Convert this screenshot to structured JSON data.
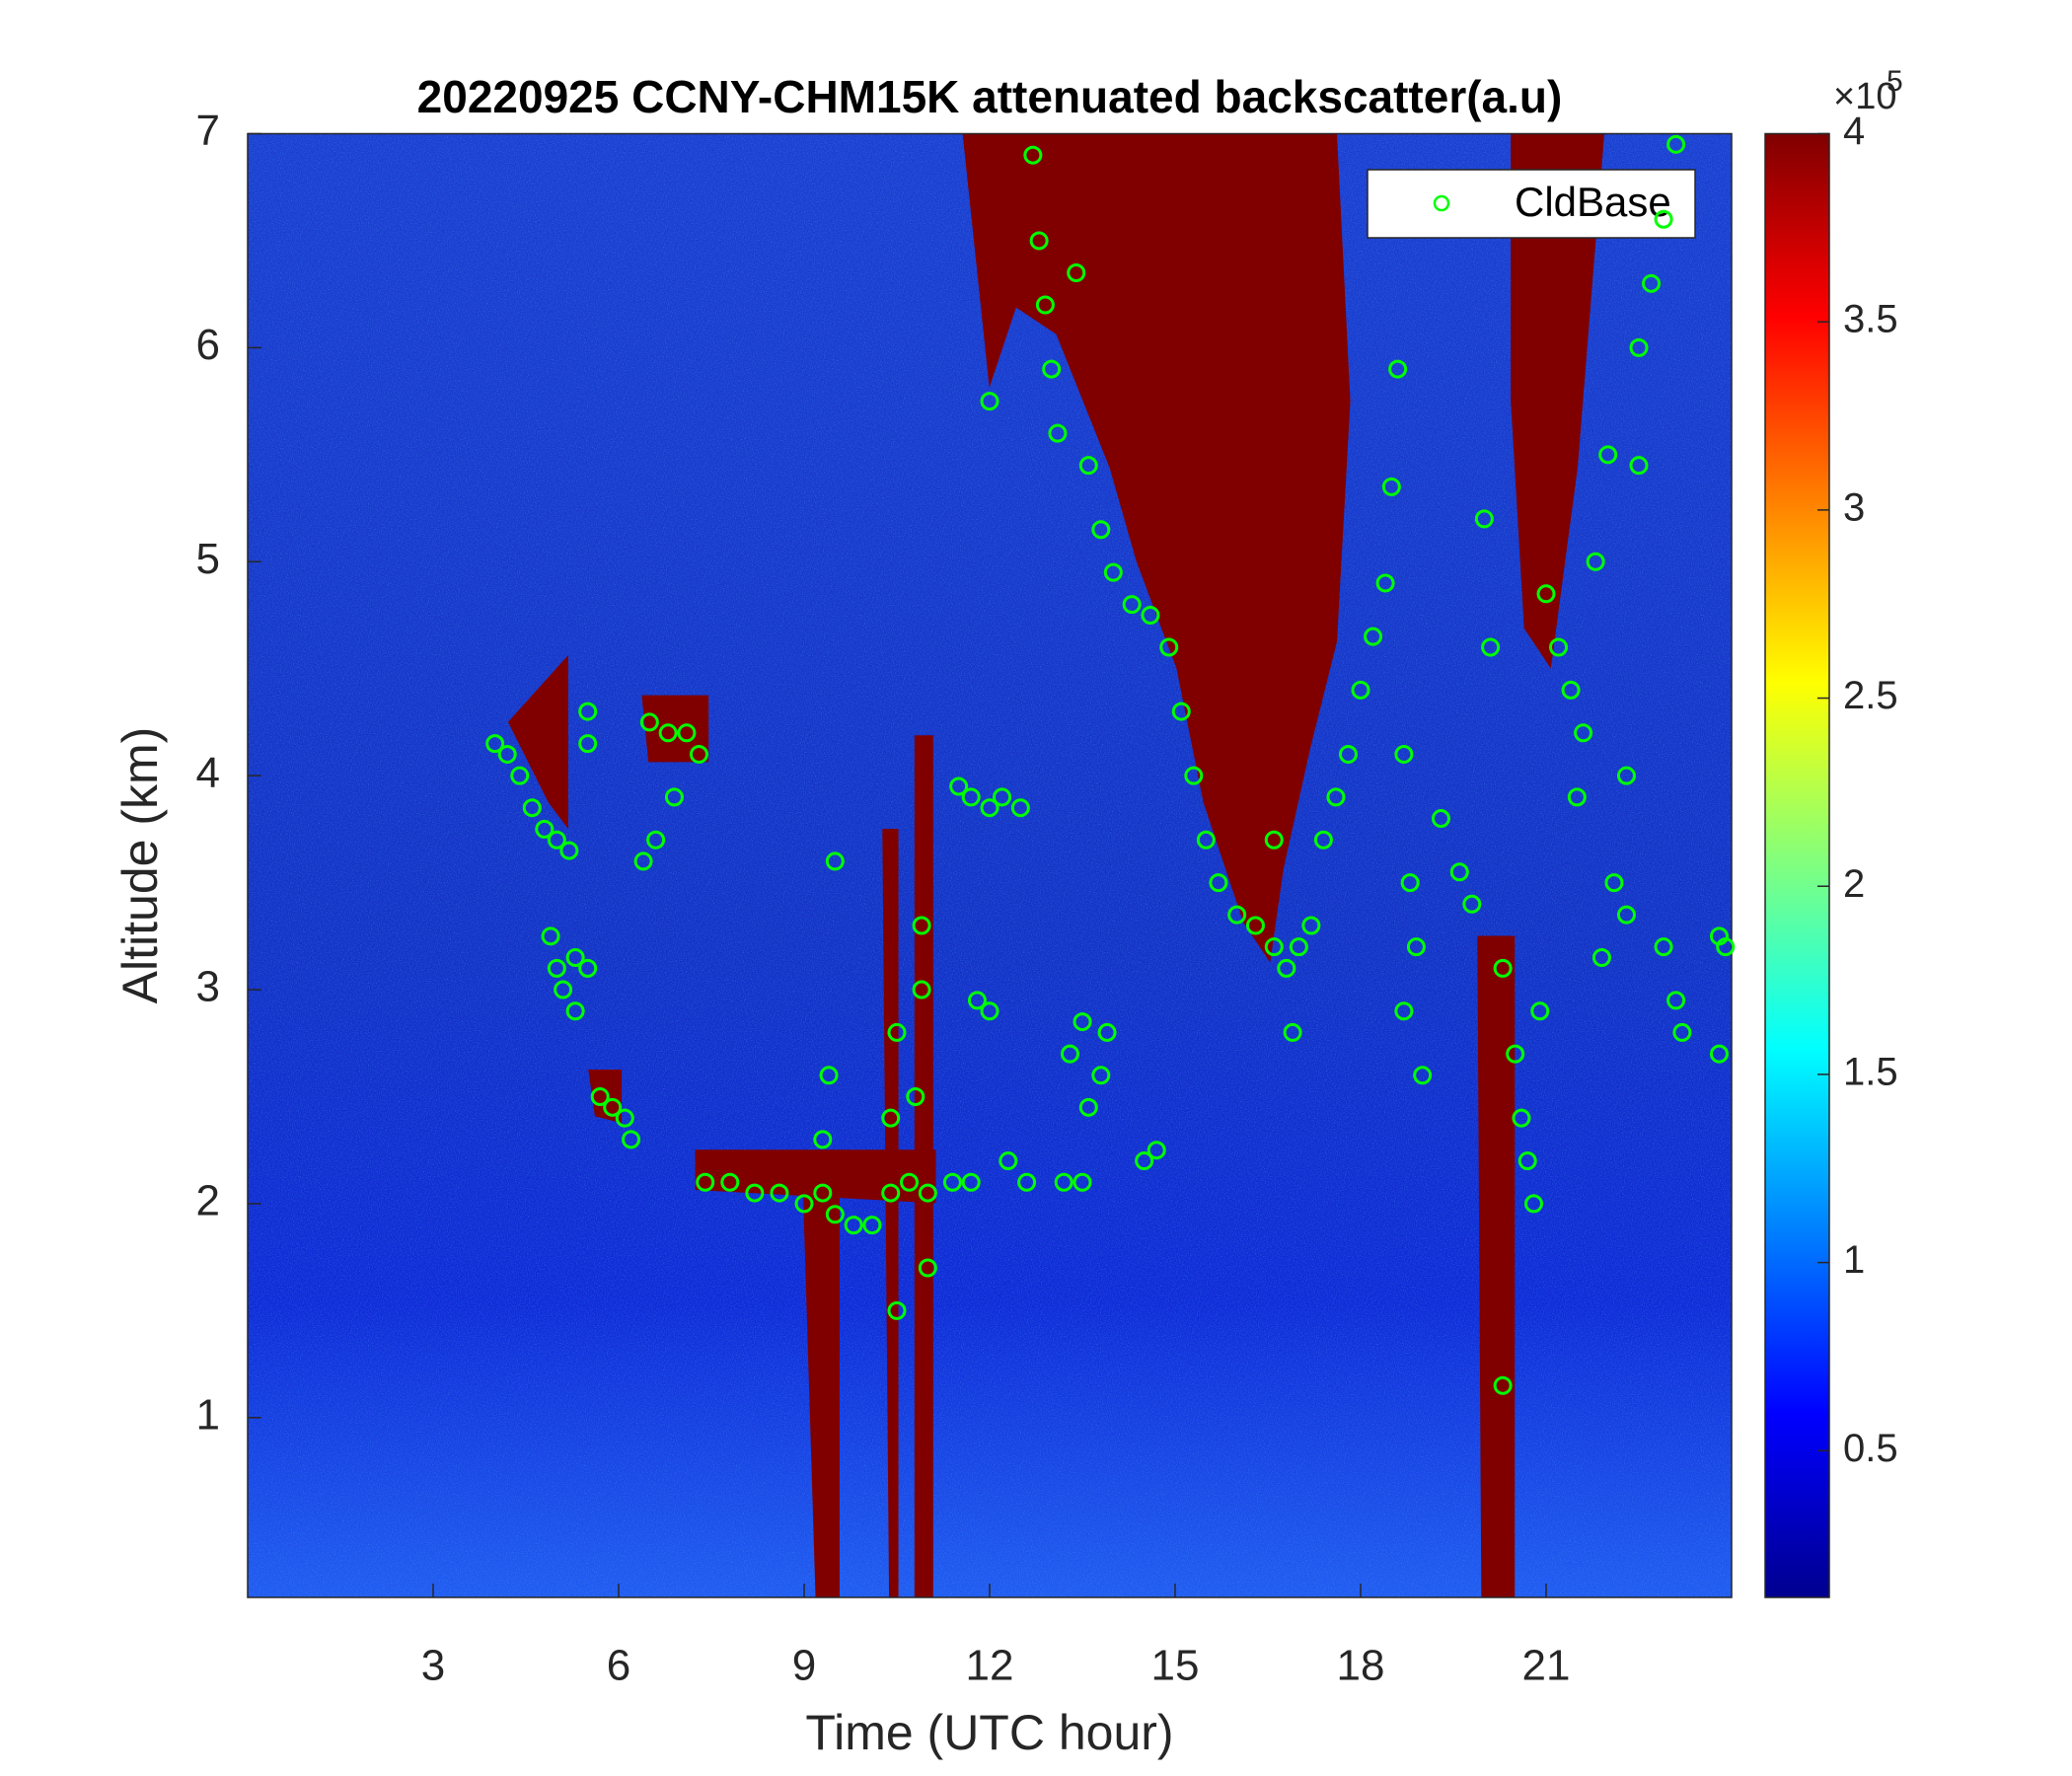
{
  "chart_data": {
    "type": "scatter",
    "title": "20220925 CCNY-CHM15K attenuated backscatter(a.u)",
    "x_label": "Time (UTC hour)",
    "y_label": "Altitude (km)",
    "xlim": [
      0,
      24
    ],
    "xticks": [
      3,
      6,
      9,
      12,
      15,
      18,
      21
    ],
    "ylim": [
      0.16,
      7
    ],
    "yticks": [
      1,
      2,
      3,
      4,
      5,
      6,
      7
    ],
    "legend": "upper right",
    "series": [
      {
        "name": "CldBase",
        "color": "#00ff00",
        "x": [
          4.0,
          4.2,
          4.4,
          4.6,
          4.8,
          5.0,
          5.2,
          5.5,
          5.5,
          4.9,
          5.0,
          5.1,
          5.3,
          5.5,
          5.3,
          5.7,
          5.9,
          6.1,
          6.2,
          6.5,
          6.8,
          7.1,
          7.3,
          6.4,
          6.6,
          6.9,
          7.4,
          7.8,
          8.2,
          8.6,
          9.0,
          9.3,
          9.5,
          9.8,
          10.1,
          10.4,
          10.7,
          11.0,
          11.4,
          11.7,
          9.3,
          9.4,
          9.5,
          10.4,
          10.5,
          10.5,
          10.9,
          10.9,
          11.0,
          10.8,
          11.5,
          11.7,
          12.0,
          12.2,
          12.5,
          11.8,
          12.0,
          12.3,
          12.6,
          13.2,
          13.5,
          14.5,
          14.7,
          13.3,
          13.5,
          13.8,
          13.9,
          13.6,
          12.0,
          12.7,
          12.8,
          12.9,
          13.0,
          13.1,
          13.4,
          13.6,
          13.8,
          14.0,
          14.3,
          14.6,
          14.9,
          15.1,
          15.3,
          15.5,
          15.7,
          16.0,
          16.3,
          16.6,
          16.8,
          17.0,
          17.2,
          16.9,
          16.6,
          17.4,
          17.6,
          17.8,
          18.0,
          18.2,
          18.4,
          18.5,
          18.6,
          18.7,
          18.8,
          18.7,
          19.0,
          18.9,
          19.3,
          19.6,
          19.8,
          20.0,
          20.1,
          20.3,
          20.5,
          20.6,
          20.7,
          20.3,
          20.8,
          20.9,
          21.0,
          21.2,
          21.4,
          21.6,
          21.5,
          21.8,
          22.0,
          22.1,
          22.3,
          21.9,
          22.3,
          22.5,
          22.5,
          22.7,
          22.9,
          23.1,
          22.9,
          23.1,
          23.2,
          23.8,
          23.9,
          23.8
        ],
        "values": [
          4.15,
          4.1,
          4.0,
          3.85,
          3.75,
          3.7,
          3.65,
          4.3,
          4.15,
          3.25,
          3.1,
          3.0,
          3.15,
          3.1,
          2.9,
          2.5,
          2.45,
          2.4,
          2.3,
          4.25,
          4.2,
          4.2,
          4.1,
          3.6,
          3.7,
          3.9,
          2.1,
          2.1,
          2.05,
          2.05,
          2.0,
          2.05,
          1.95,
          1.9,
          1.9,
          2.05,
          2.1,
          2.05,
          2.1,
          2.1,
          2.3,
          2.6,
          3.6,
          2.4,
          2.8,
          1.5,
          3.3,
          3.0,
          1.7,
          2.5,
          3.95,
          3.9,
          3.85,
          3.9,
          3.85,
          2.95,
          2.9,
          2.2,
          2.1,
          2.1,
          2.1,
          2.2,
          2.25,
          2.7,
          2.85,
          2.6,
          2.8,
          2.45,
          5.75,
          6.9,
          6.5,
          6.2,
          5.9,
          5.6,
          6.35,
          5.45,
          5.15,
          4.95,
          4.8,
          4.75,
          4.6,
          4.3,
          4.0,
          3.7,
          3.5,
          3.35,
          3.3,
          3.2,
          3.1,
          3.2,
          3.3,
          2.8,
          3.7,
          3.7,
          3.9,
          4.1,
          4.4,
          4.65,
          4.9,
          5.35,
          5.9,
          4.1,
          3.5,
          2.9,
          2.6,
          3.2,
          3.8,
          3.55,
          3.4,
          5.2,
          4.6,
          3.1,
          2.7,
          2.4,
          2.2,
          1.15,
          2.0,
          2.9,
          4.85,
          4.6,
          4.4,
          4.2,
          3.9,
          5.0,
          5.5,
          3.5,
          3.35,
          3.15,
          4.0,
          5.45,
          6.0,
          6.3,
          6.6,
          6.95,
          3.2,
          2.95,
          2.8,
          3.25,
          3.2,
          2.7
        ]
      }
    ],
    "colorbar": {
      "colormap": "jet",
      "lim": [
        0.11,
        4
      ],
      "ticks": [
        0.5,
        1,
        1.5,
        2,
        2.5,
        3,
        3.5,
        4
      ],
      "multiplier": "×10",
      "exponent": "5"
    }
  }
}
